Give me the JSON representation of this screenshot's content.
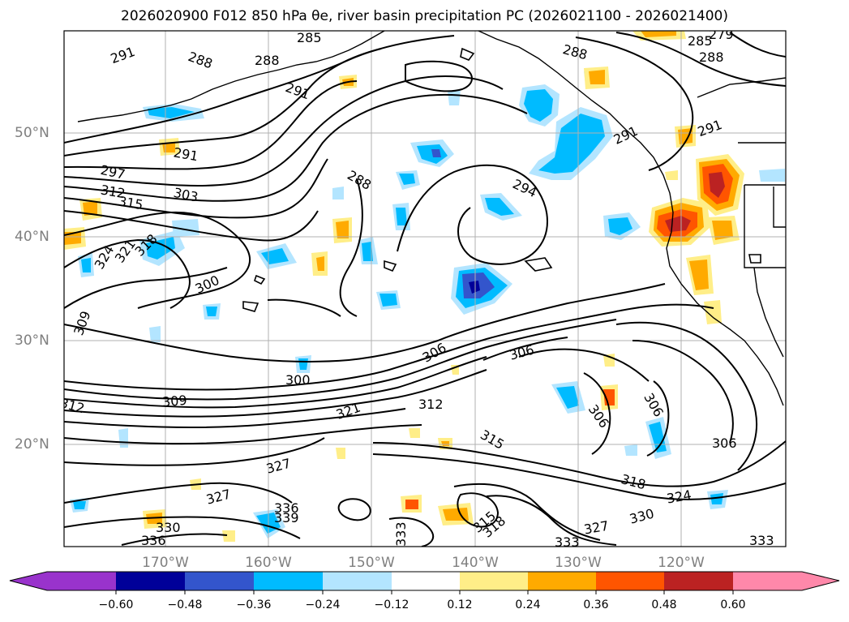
{
  "title": "2026020900 F012 850 hPa θe, river basin precipitation PC (2026021100 - 2026021400)",
  "lat_labels": [
    "50°N",
    "40°N",
    "30°N",
    "20°N"
  ],
  "lon_labels": [
    "170°W",
    "160°W",
    "150°W",
    "140°W",
    "130°W",
    "120°W"
  ],
  "colorbar": {
    "ticks": [
      "−0.60",
      "−0.48",
      "−0.36",
      "−0.24",
      "−0.12",
      "0.12",
      "0.24",
      "0.36",
      "0.48",
      "0.60"
    ],
    "colors": [
      "#9933cc",
      "#000099",
      "#3355cc",
      "#00bbff",
      "#b3e5ff",
      "#ffffff",
      "#ffee88",
      "#ffaa00",
      "#ff5500",
      "#bb2222",
      "#ff88aa"
    ]
  },
  "contour_labels": [
    "291",
    "288",
    "285",
    "288",
    "291",
    "288",
    "285",
    "279",
    "288",
    "291",
    "297",
    "312",
    "315",
    "303",
    "324",
    "321",
    "318",
    "300",
    "309",
    "312",
    "300",
    "288",
    "294",
    "306",
    "306",
    "309",
    "312",
    "321",
    "315",
    "327",
    "327",
    "336",
    "339",
    "330",
    "336",
    "333",
    "318",
    "324",
    "327",
    "330",
    "333",
    "315",
    "318",
    "306",
    "306",
    "306",
    "333",
    "291",
    "291"
  ],
  "colors": {
    "contour": "#000000",
    "grid": "#b0b0b0",
    "tick_label": "#7f7f7f"
  }
}
